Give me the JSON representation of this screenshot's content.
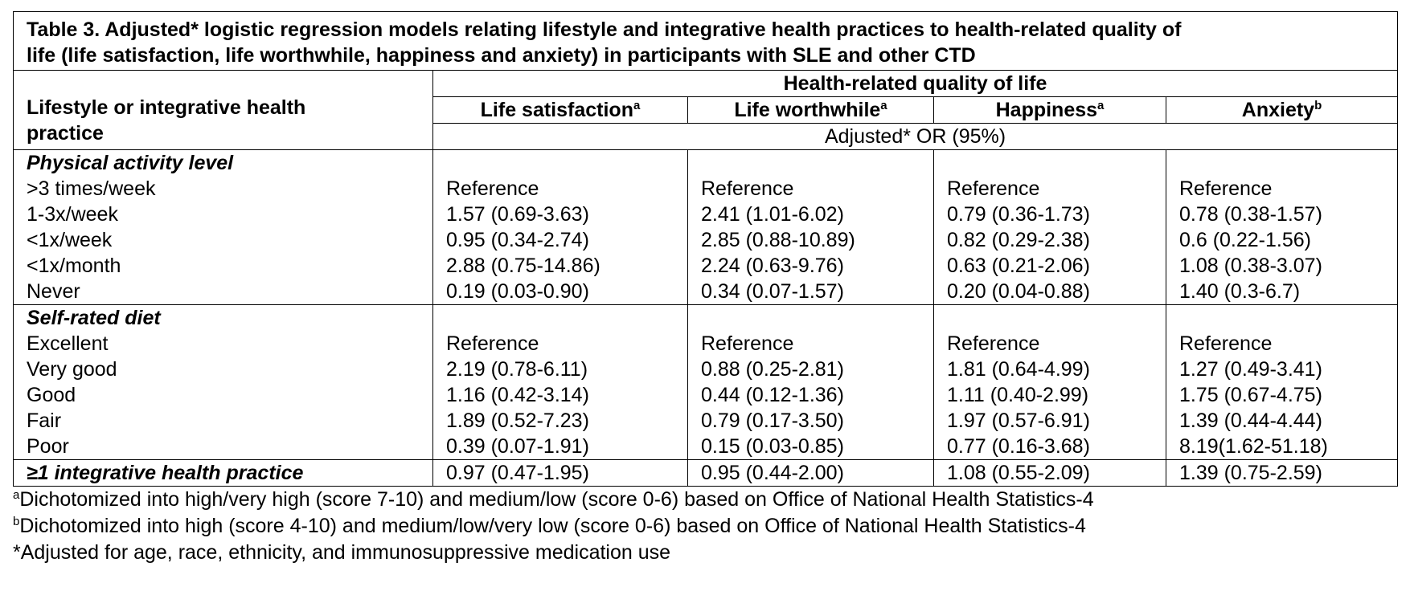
{
  "title_line1": "Table 3. Adjusted* logistic regression models relating lifestyle and integrative health practices to health-related quality of",
  "title_line2": "life (life satisfaction, life worthwhile, happiness and anxiety) in participants with SLE and other CTD",
  "header": {
    "row_label_line1": "Lifestyle or integrative health",
    "row_label_line2": "practice",
    "group": "Health-related quality of life",
    "subheader": "Adjusted* OR (95%)",
    "columns": [
      {
        "label": "Life satisfaction",
        "sup": "a"
      },
      {
        "label": "Life worthwhile",
        "sup": "a"
      },
      {
        "label": "Happiness",
        "sup": "a"
      },
      {
        "label": "Anxiety",
        "sup": "b"
      }
    ]
  },
  "sections": [
    {
      "heading": "Physical activity level",
      "rows": [
        {
          "label": ">3 times/week",
          "values": [
            "Reference",
            "Reference",
            "Reference",
            "Reference"
          ]
        },
        {
          "label": "1-3x/week",
          "values": [
            "1.57 (0.69-3.63)",
            "2.41 (1.01-6.02)",
            "0.79 (0.36-1.73)",
            "0.78 (0.38-1.57)"
          ]
        },
        {
          "label": "<1x/week",
          "values": [
            "0.95 (0.34-2.74)",
            "2.85 (0.88-10.89)",
            "0.82 (0.29-2.38)",
            "0.6 (0.22-1.56)"
          ]
        },
        {
          "label": "<1x/month",
          "values": [
            "2.88 (0.75-14.86)",
            "2.24 (0.63-9.76)",
            "0.63 (0.21-2.06)",
            "1.08 (0.38-3.07)"
          ]
        },
        {
          "label": "Never",
          "values": [
            "0.19 (0.03-0.90)",
            "0.34 (0.07-1.57)",
            "0.20 (0.04-0.88)",
            "1.40 (0.3-6.7)"
          ]
        }
      ]
    },
    {
      "heading": "Self-rated diet",
      "rows": [
        {
          "label": "Excellent",
          "values": [
            "Reference",
            "Reference",
            "Reference",
            "Reference"
          ]
        },
        {
          "label": "Very good",
          "values": [
            "2.19 (0.78-6.11)",
            "0.88 (0.25-2.81)",
            "1.81 (0.64-4.99)",
            "1.27 (0.49-3.41)"
          ]
        },
        {
          "label": "Good",
          "values": [
            "1.16 (0.42-3.14)",
            "0.44 (0.12-1.36)",
            "1.11 (0.40-2.99)",
            "1.75 (0.67-4.75)"
          ]
        },
        {
          "label": "Fair",
          "values": [
            "1.89 (0.52-7.23)",
            "0.79 (0.17-3.50)",
            "1.97 (0.57-6.91)",
            "1.39 (0.44-4.44)"
          ]
        },
        {
          "label": "Poor",
          "values": [
            "0.39 (0.07-1.91)",
            "0.15 (0.03-0.85)",
            "0.77 (0.16-3.68)",
            "8.19(1.62-51.18)"
          ]
        }
      ]
    }
  ],
  "integrative": {
    "label": "≥1 integrative health practice",
    "values": [
      "0.97 (0.47-1.95)",
      "0.95 (0.44-2.00)",
      "1.08 (0.55-2.09)",
      "1.39 (0.75-2.59)"
    ]
  },
  "footnotes": [
    {
      "sup": "a",
      "text": "Dichotomized into high/very high (score 7-10) and medium/low (score 0-6) based on Office of National Health Statistics-4"
    },
    {
      "sup": "b",
      "text": "Dichotomized into high (score 4-10) and medium/low/very low (score 0-6) based on Office of National Health Statistics-4"
    },
    {
      "sup": "",
      "text": "*Adjusted for age, race, ethnicity, and immunosuppressive medication use"
    }
  ]
}
